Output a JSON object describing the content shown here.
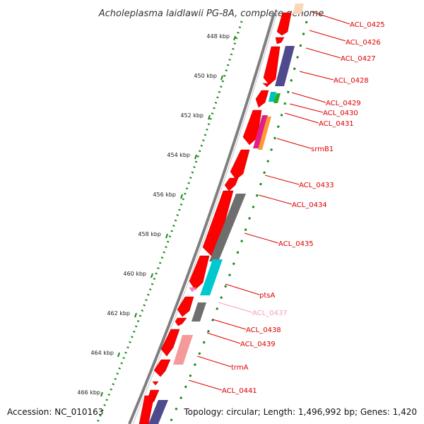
{
  "title": "Acholeplasma laidlawii PG-8A, complete genome",
  "accession": "Accession: NC_010163",
  "topology": "Topology: circular; Length: 1,496,992 bp; Genes: 1,420",
  "colors": {
    "backbone": "#7f7f7f",
    "ruler": "#1a8a1a",
    "gene_red": "#ff0000",
    "label_red": "#dd0000",
    "label_pink": "#f0a0c0"
  },
  "ruler": {
    "ticks": [
      "448 kbp",
      "450 kbp",
      "452 kbp",
      "454 kbp",
      "456 kbp",
      "458 kbp",
      "460 kbp",
      "462 kbp",
      "464 kbp",
      "466 kbp"
    ]
  },
  "genes": [
    {
      "label": "ACL_0425",
      "color": "#dd0000"
    },
    {
      "label": "ACL_0426",
      "color": "#dd0000"
    },
    {
      "label": "ACL_0427",
      "color": "#dd0000"
    },
    {
      "label": "ACL_0428",
      "color": "#dd0000"
    },
    {
      "label": "ACL_0429",
      "color": "#dd0000"
    },
    {
      "label": "ACL_0430",
      "color": "#dd0000"
    },
    {
      "label": "ACL_0431",
      "color": "#dd0000"
    },
    {
      "label": "srmB1",
      "color": "#dd0000"
    },
    {
      "label": "ACL_0433",
      "color": "#dd0000"
    },
    {
      "label": "ACL_0434",
      "color": "#dd0000"
    },
    {
      "label": "ACL_0435",
      "color": "#dd0000"
    },
    {
      "label": "ptsA",
      "color": "#dd0000"
    },
    {
      "label": "ACL_0437",
      "color": "#f0a0c0"
    },
    {
      "label": "ACL_0438",
      "color": "#dd0000"
    },
    {
      "label": "ACL_0439",
      "color": "#dd0000"
    },
    {
      "label": "trmA",
      "color": "#dd0000"
    },
    {
      "label": "ACL_0441",
      "color": "#dd0000"
    }
  ]
}
